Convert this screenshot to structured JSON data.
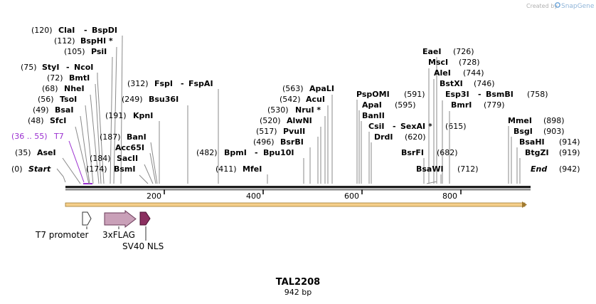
{
  "credit": {
    "prefix": "Created by",
    "brand": "SnapGene"
  },
  "map": {
    "name": "TAL2208",
    "length_label": "942 bp",
    "length_bp": 942
  },
  "start_marker": {
    "label": "Start",
    "pos_text": "(0)",
    "bp": 0
  },
  "end_marker": {
    "label": "End",
    "pos_text": "(942)",
    "bp": 942
  },
  "ticks": [
    {
      "bp": 200,
      "label": "200"
    },
    {
      "bp": 400,
      "label": "400"
    },
    {
      "bp": 600,
      "label": "600"
    },
    {
      "bp": 800,
      "label": "800"
    }
  ],
  "sites_left": [
    {
      "pos_text": "(120)",
      "names": [
        "ClaI",
        "-",
        "BspDI"
      ],
      "bp": 120
    },
    {
      "pos_text": "(112)",
      "names": [
        "BspHI *"
      ],
      "bp": 112
    },
    {
      "pos_text": "(105)",
      "names": [
        "PsiI"
      ],
      "bp": 105
    },
    {
      "pos_text": "(75)",
      "names": [
        "StyI",
        "-",
        "NcoI"
      ],
      "bp": 75
    },
    {
      "pos_text": "(72)",
      "names": [
        "BmtI"
      ],
      "bp": 72
    },
    {
      "pos_text": "(68)",
      "names": [
        "NheI"
      ],
      "bp": 68
    },
    {
      "pos_text": "(56)",
      "names": [
        "TsoI"
      ],
      "bp": 56
    },
    {
      "pos_text": "(49)",
      "names": [
        "BsaI"
      ],
      "bp": 49
    },
    {
      "pos_text": "(48)",
      "names": [
        "SfcI"
      ],
      "bp": 48
    },
    {
      "pos_text": "(35)",
      "names": [
        "AseI"
      ],
      "bp": 35
    }
  ],
  "primer": {
    "pos_text": "(36 .. 55)",
    "name": "T7",
    "color": "#9b30d0"
  },
  "sites_mid": [
    {
      "pos_text": "(312)",
      "names": [
        "FspI",
        "-",
        "FspAI"
      ],
      "bp": 312
    },
    {
      "pos_text": "(249)",
      "names": [
        "Bsu36I"
      ],
      "bp": 249
    },
    {
      "pos_text": "(191)",
      "names": [
        "KpnI"
      ],
      "bp": 191
    },
    {
      "pos_text": "(187)",
      "names": [
        "BanI"
      ],
      "bp": 187
    },
    {
      "pos_text": "",
      "names": [
        "Acc65I"
      ],
      "bp": 187
    },
    {
      "pos_text": "(184)",
      "names": [
        "SacII"
      ],
      "bp": 184
    },
    {
      "pos_text": "(174)",
      "names": [
        "BsmI"
      ],
      "bp": 174
    },
    {
      "pos_text": "(482)",
      "names": [
        "BpmI",
        "-",
        "Bpu10I"
      ],
      "bp": 482
    },
    {
      "pos_text": "(411)",
      "names": [
        "MfeI"
      ],
      "bp": 411
    }
  ],
  "sites_center": [
    {
      "pos_text": "(563)",
      "names": [
        "ApaLI"
      ],
      "bp": 563
    },
    {
      "pos_text": "(542)",
      "names": [
        "AcuI"
      ],
      "bp": 542
    },
    {
      "pos_text": "(530)",
      "names": [
        "NruI *"
      ],
      "bp": 530
    },
    {
      "pos_text": "(520)",
      "names": [
        "AlwNI"
      ],
      "bp": 520
    },
    {
      "pos_text": "(517)",
      "names": [
        "PvuII"
      ],
      "bp": 517
    },
    {
      "pos_text": "(496)",
      "names": [
        "BsrBI"
      ],
      "bp": 496
    },
    {
      "pos_text": "(591)",
      "names": [
        "PspOMI"
      ],
      "bp": 591
    },
    {
      "pos_text": "(595)",
      "names": [
        "ApaI"
      ],
      "bp": 595
    },
    {
      "pos_text": "",
      "names": [
        "BanII"
      ],
      "bp": 595
    },
    {
      "pos_text": "",
      "names": [
        "CsiI",
        "-",
        "SexAI *"
      ],
      "bp": 615
    },
    {
      "pos_text": "(620)",
      "names": [
        "DrdI"
      ],
      "bp": 620
    }
  ],
  "sites_right": [
    {
      "pos_text": "(726)",
      "names": [
        "EaeI"
      ],
      "bp": 726
    },
    {
      "pos_text": "(728)",
      "names": [
        "MscI"
      ],
      "bp": 728
    },
    {
      "pos_text": "(744)",
      "names": [
        "AleI"
      ],
      "bp": 744
    },
    {
      "pos_text": "(746)",
      "names": [
        "BstXI"
      ],
      "bp": 746
    },
    {
      "pos_text": "(758)",
      "names": [
        "Esp3I",
        "-",
        "BsmBI"
      ],
      "bp": 758
    },
    {
      "pos_text": "(779)",
      "names": [
        "BmrI"
      ],
      "bp": 779
    },
    {
      "pos_text": "(615)",
      "names": [],
      "bp": 615
    },
    {
      "pos_text": "(682)",
      "names": [
        "BsrFI"
      ],
      "bp": 682
    },
    {
      "pos_text": "(712)",
      "names": [
        "BsaWI"
      ],
      "bp": 712
    },
    {
      "pos_text": "(898)",
      "names": [
        "MmeI"
      ],
      "bp": 898
    },
    {
      "pos_text": "(903)",
      "names": [
        "BsgI"
      ],
      "bp": 903
    },
    {
      "pos_text": "(914)",
      "names": [
        "BsaHI"
      ],
      "bp": 914
    },
    {
      "pos_text": "(919)",
      "names": [
        "BtgZI"
      ],
      "bp": 919
    }
  ],
  "features": [
    {
      "name": "T7 promoter",
      "start_bp": 36,
      "end_bp": 55,
      "color": "#ffffff"
    },
    {
      "name": "3xFLAG",
      "start_bp": 78,
      "end_bp": 143,
      "color": "#c9a0b8"
    },
    {
      "name": "SV40 NLS",
      "start_bp": 156,
      "end_bp": 176,
      "color": "#8b3060"
    }
  ],
  "orf_bar": {
    "color": "#f5cf8a",
    "start_bp": 0,
    "end_bp": 942
  }
}
